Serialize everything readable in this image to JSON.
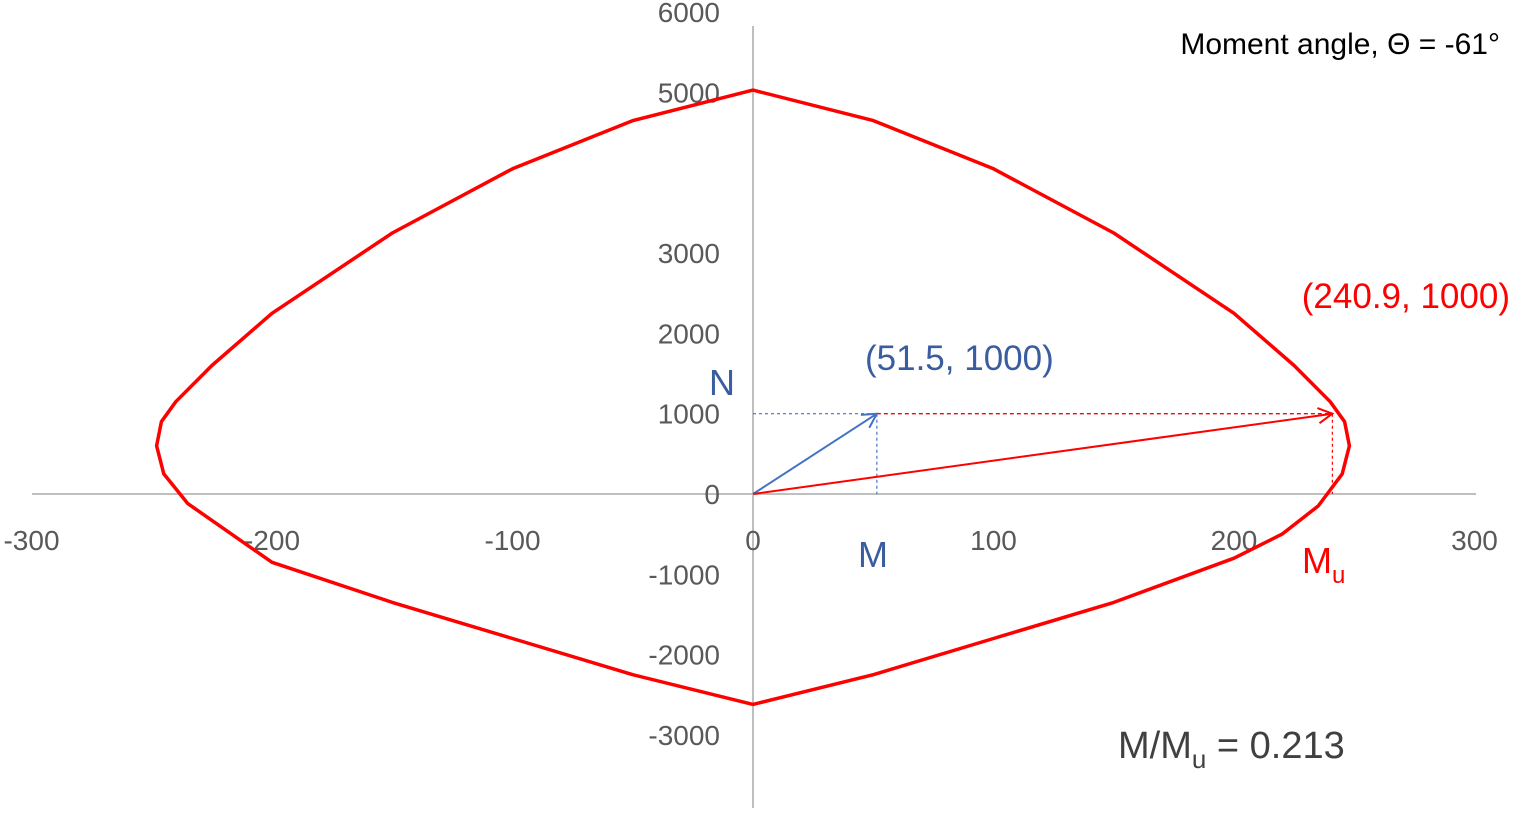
{
  "chart_data": {
    "type": "line",
    "title": "",
    "xlabel": "",
    "ylabel": "",
    "xlim": [
      -300,
      300
    ],
    "ylim": [
      -3400,
      6000
    ],
    "x_ticks": [
      "-300",
      "-200",
      "-100",
      "0",
      "100",
      "200",
      "300"
    ],
    "x_tick_values": [
      -300,
      -200,
      -100,
      0,
      100,
      200,
      300
    ],
    "y_ticks": [
      "6000",
      "5000",
      "3000",
      "2000",
      "1000",
      "0",
      "-1000",
      "-2000",
      "-3000"
    ],
    "y_tick_values": [
      6000,
      5000,
      3000,
      2000,
      1000,
      0,
      -1000,
      -2000,
      -3000
    ],
    "grid": false,
    "colors": {
      "envelope": "#ff0000",
      "applied": "#4472c4",
      "axis": "#bfbfbf",
      "text": "#404040"
    },
    "series": [
      {
        "x": [
          0,
          50,
          100,
          150,
          200,
          225,
          240,
          246,
          248,
          245,
          235,
          220,
          200,
          150,
          100,
          50,
          0,
          -50,
          -100,
          -150,
          -200,
          -235,
          -245,
          -248,
          -246,
          -240,
          -225,
          -200,
          -150,
          -100,
          -50,
          0
        ],
        "y": [
          5030,
          4650,
          4050,
          3250,
          2250,
          1600,
          1150,
          900,
          600,
          250,
          -150,
          -500,
          -800,
          -1350,
          -1800,
          -2250,
          -2620,
          -2250,
          -1800,
          -1350,
          -850,
          -120,
          250,
          600,
          900,
          1150,
          1600,
          2250,
          3250,
          4050,
          4650,
          5030
        ]
      }
    ],
    "vectors": [
      {
        "from": [
          0,
          0
        ],
        "to": [
          51.5,
          1000
        ],
        "color": "#4472c4"
      },
      {
        "from": [
          0,
          0
        ],
        "to": [
          240.9,
          1000
        ],
        "color": "#ff0000"
      }
    ],
    "annotations": {
      "moment_angle": "Moment angle, Θ = -61°",
      "applied_point": "(51.5, 1000)",
      "ultimate_point": "(240.9, 1000)",
      "n_label": "N",
      "m_label": "M",
      "mu_label": {
        "main": "M",
        "sub": "u"
      },
      "ratio": {
        "prefix": "M/M",
        "sub": "u",
        "suffix": " = 0.213"
      }
    }
  }
}
